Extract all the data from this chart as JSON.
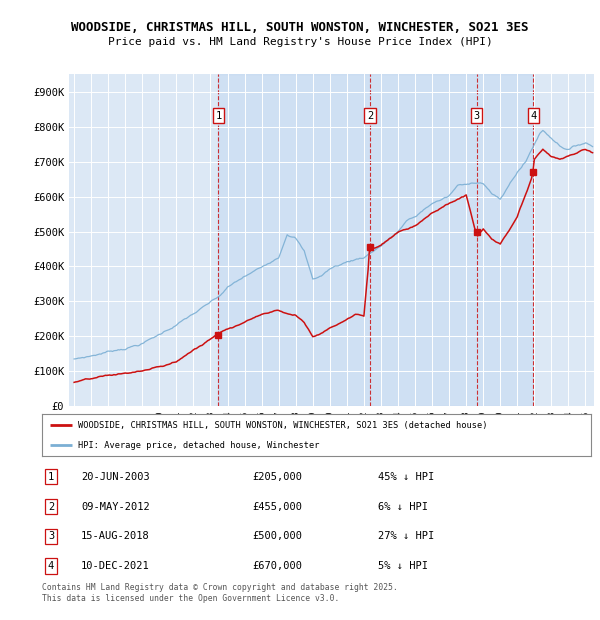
{
  "title_line1": "WOODSIDE, CHRISTMAS HILL, SOUTH WONSTON, WINCHESTER, SO21 3ES",
  "title_line2": "Price paid vs. HM Land Registry's House Price Index (HPI)",
  "background_color": "#dce8f5",
  "fig_color": "#ffffff",
  "ylim": [
    0,
    950000
  ],
  "yticks": [
    0,
    100000,
    200000,
    300000,
    400000,
    500000,
    600000,
    700000,
    800000,
    900000
  ],
  "ytick_labels": [
    "£0",
    "£100K",
    "£200K",
    "£300K",
    "£400K",
    "£500K",
    "£600K",
    "£700K",
    "£800K",
    "£900K"
  ],
  "hpi_color": "#7bafd4",
  "price_color": "#cc1111",
  "sale_marker_color": "#cc1111",
  "sale_dates_num": [
    2003.47,
    2012.36,
    2018.62,
    2021.94
  ],
  "sale_prices": [
    205000,
    455000,
    500000,
    670000
  ],
  "sale_labels": [
    "1",
    "2",
    "3",
    "4"
  ],
  "vline_color": "#cc1111",
  "shade_color": "#ccddf0",
  "legend_label_red": "WOODSIDE, CHRISTMAS HILL, SOUTH WONSTON, WINCHESTER, SO21 3ES (detached house)",
  "legend_label_blue": "HPI: Average price, detached house, Winchester",
  "table_data": [
    [
      "1",
      "20-JUN-2003",
      "£205,000",
      "45% ↓ HPI"
    ],
    [
      "2",
      "09-MAY-2012",
      "£455,000",
      "6% ↓ HPI"
    ],
    [
      "3",
      "15-AUG-2018",
      "£500,000",
      "27% ↓ HPI"
    ],
    [
      "4",
      "10-DEC-2021",
      "£670,000",
      "5% ↓ HPI"
    ]
  ],
  "footnote": "Contains HM Land Registry data © Crown copyright and database right 2025.\nThis data is licensed under the Open Government Licence v3.0.",
  "xlim_start": 1994.7,
  "xlim_end": 2025.5,
  "hpi_waypoints_t": [
    1995.0,
    1996.0,
    1997.0,
    1998.0,
    1999.0,
    2000.0,
    2001.0,
    2002.0,
    2003.0,
    2003.5,
    2004.0,
    2005.0,
    2006.0,
    2007.0,
    2007.5,
    2008.0,
    2008.5,
    2009.0,
    2009.5,
    2010.0,
    2011.0,
    2012.0,
    2013.0,
    2014.0,
    2014.5,
    2015.0,
    2016.0,
    2017.0,
    2017.5,
    2018.0,
    2018.5,
    2019.0,
    2019.5,
    2020.0,
    2020.5,
    2021.0,
    2021.5,
    2022.0,
    2022.3,
    2022.5,
    2023.0,
    2023.5,
    2024.0,
    2024.5,
    2025.0,
    2025.4
  ],
  "hpi_waypoints_v": [
    135000,
    145000,
    158000,
    170000,
    185000,
    210000,
    240000,
    270000,
    300000,
    315000,
    340000,
    370000,
    395000,
    430000,
    500000,
    490000,
    450000,
    370000,
    380000,
    400000,
    420000,
    435000,
    470000,
    510000,
    540000,
    550000,
    590000,
    610000,
    640000,
    640000,
    650000,
    650000,
    620000,
    600000,
    640000,
    680000,
    710000,
    760000,
    790000,
    800000,
    780000,
    760000,
    750000,
    760000,
    770000,
    760000
  ],
  "price_waypoints_t": [
    1995.0,
    1996.0,
    1997.0,
    1998.0,
    1999.0,
    2000.0,
    2001.0,
    2002.0,
    2003.0,
    2003.47,
    2004.0,
    2005.0,
    2006.0,
    2007.0,
    2007.5,
    2008.0,
    2008.5,
    2009.0,
    2009.5,
    2010.0,
    2011.0,
    2011.5,
    2012.0,
    2012.36,
    2013.0,
    2014.0,
    2015.0,
    2016.0,
    2017.0,
    2018.0,
    2018.62,
    2019.0,
    2019.5,
    2020.0,
    2020.5,
    2021.0,
    2021.94,
    2022.0,
    2022.5,
    2023.0,
    2023.5,
    2024.0,
    2024.5,
    2025.0,
    2025.4
  ],
  "price_waypoints_v": [
    68000,
    75000,
    82000,
    88000,
    95000,
    105000,
    120000,
    155000,
    185000,
    205000,
    220000,
    240000,
    265000,
    280000,
    270000,
    265000,
    245000,
    205000,
    215000,
    230000,
    255000,
    270000,
    265000,
    455000,
    470000,
    510000,
    530000,
    570000,
    595000,
    620000,
    500000,
    520000,
    490000,
    475000,
    510000,
    550000,
    670000,
    710000,
    740000,
    720000,
    710000,
    720000,
    730000,
    740000,
    730000
  ]
}
